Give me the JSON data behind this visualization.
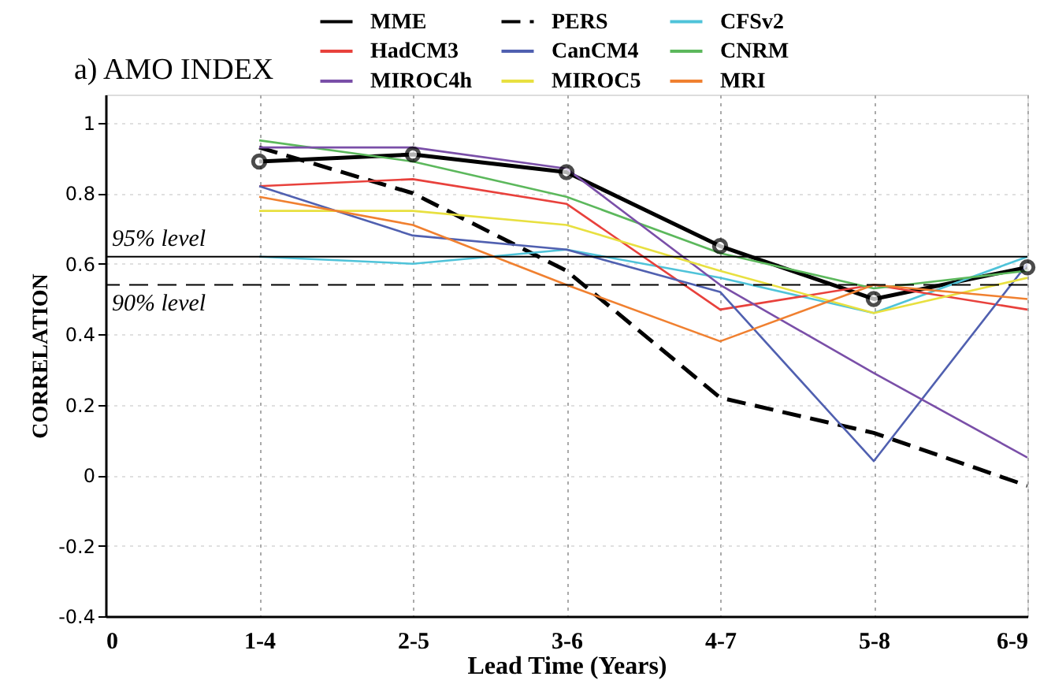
{
  "chart_data": {
    "type": "line",
    "title": "a) AMO INDEX",
    "xlabel": "Lead Time (Years)",
    "ylabel": "CORRELATION",
    "categories": [
      "0",
      "1-4",
      "2-5",
      "3-6",
      "4-7",
      "5-8",
      "6-9"
    ],
    "ylim": [
      -0.4,
      1.08
    ],
    "yticks": [
      -0.4,
      -0.2,
      0,
      0.2,
      0.4,
      0.6,
      0.8,
      1
    ],
    "grid": true,
    "legend": "top right",
    "series": [
      {
        "name": "MME",
        "color": "#000000",
        "values": [
          null,
          0.89,
          0.91,
          0.86,
          0.65,
          0.5,
          0.59
        ],
        "marker": "circle"
      },
      {
        "name": "PERS",
        "color": "#000000",
        "values": [
          null,
          0.93,
          0.8,
          0.58,
          0.22,
          0.12,
          -0.03
        ],
        "line_style": "dashed"
      },
      {
        "name": "CFSv2",
        "color": "#4fc3d9",
        "values": [
          null,
          0.62,
          0.6,
          0.64,
          0.56,
          0.46,
          0.62
        ]
      },
      {
        "name": "HadCM3",
        "color": "#e8413c",
        "values": [
          null,
          0.82,
          0.84,
          0.77,
          0.47,
          0.54,
          0.47
        ]
      },
      {
        "name": "CanCM4",
        "color": "#5060b0",
        "values": [
          null,
          0.82,
          0.68,
          0.64,
          0.52,
          0.04,
          0.6
        ]
      },
      {
        "name": "CNRM",
        "color": "#5cb85c",
        "values": [
          null,
          0.95,
          0.89,
          0.79,
          0.63,
          0.53,
          0.58
        ]
      },
      {
        "name": "MIROC4h",
        "color": "#7a4fa8",
        "values": [
          null,
          0.93,
          0.93,
          0.87,
          0.54,
          0.29,
          0.05
        ]
      },
      {
        "name": "MIROC5",
        "color": "#e8e040",
        "values": [
          null,
          0.75,
          0.75,
          0.71,
          0.58,
          0.46,
          0.56
        ]
      },
      {
        "name": "MRI",
        "color": "#f08030",
        "values": [
          null,
          0.79,
          0.71,
          0.54,
          0.38,
          0.54,
          0.5
        ]
      }
    ],
    "ref_lines": [
      {
        "axis": "y",
        "value": 0.62,
        "label": "95% level",
        "line_style": "solid"
      },
      {
        "axis": "y",
        "value": 0.54,
        "label": "90% level",
        "line_style": "dashed"
      }
    ]
  }
}
